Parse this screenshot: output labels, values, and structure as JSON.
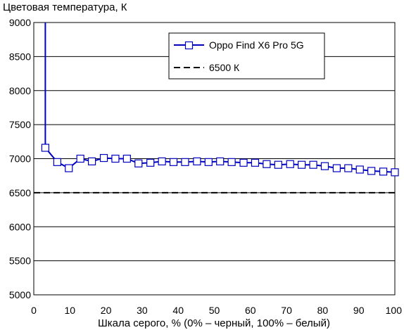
{
  "chart_data": {
    "type": "line",
    "title": "",
    "ylabel": "Цветовая температура, К",
    "xlabel": "Шкала серого, % (0% – черный, 100% – белый)",
    "xlim": [
      0,
      100
    ],
    "ylim": [
      5000,
      9000
    ],
    "xticks": [
      "0",
      "10",
      "20",
      "30",
      "40",
      "50",
      "60",
      "70",
      "80",
      "90",
      "100"
    ],
    "yticks": [
      "5000",
      "5500",
      "6000",
      "6500",
      "7000",
      "7500",
      "8000",
      "8500",
      "9000"
    ],
    "grid": "horizontal",
    "legend_position": "top-right",
    "series": [
      {
        "name": "Oppo Find X6 Pro 5G",
        "color": "#0000c0",
        "marker": "square",
        "x": [
          3.2,
          3.2,
          6.5,
          9.7,
          12.9,
          16.1,
          19.4,
          22.6,
          25.8,
          29.0,
          32.3,
          35.5,
          38.7,
          41.9,
          45.2,
          48.4,
          51.6,
          54.8,
          58.1,
          61.3,
          64.5,
          67.7,
          71.0,
          74.2,
          77.4,
          80.6,
          83.9,
          87.1,
          90.3,
          93.5,
          96.8,
          100
        ],
        "y": [
          9000,
          7160,
          6950,
          6860,
          7000,
          6960,
          7010,
          7000,
          7000,
          6930,
          6940,
          6960,
          6950,
          6950,
          6960,
          6950,
          6960,
          6950,
          6940,
          6940,
          6920,
          6910,
          6920,
          6910,
          6910,
          6890,
          6860,
          6860,
          6840,
          6820,
          6810,
          6800
        ],
        "marker_from": 1
      },
      {
        "name": "6500 К",
        "color": "#000000",
        "dash": "dashed",
        "x": [
          0,
          100
        ],
        "y": [
          6500,
          6500
        ]
      }
    ]
  }
}
